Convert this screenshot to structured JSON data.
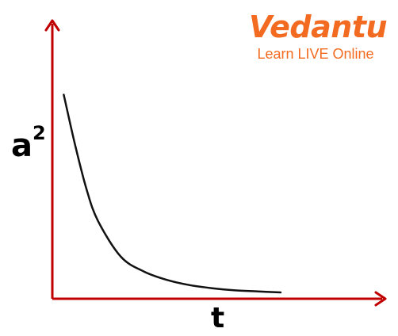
{
  "chart_data": {
    "type": "line",
    "title": "",
    "xlabel": "t",
    "ylabel": "a",
    "ylabel_superscript": "2",
    "x_ticks": [],
    "y_ticks": [],
    "grid": false,
    "legend": "none",
    "series": [
      {
        "x": [
          0.05,
          0.1,
          0.15,
          0.2,
          0.3,
          0.4,
          0.5,
          0.6,
          0.7,
          0.8,
          0.9,
          1.0
        ],
        "y": [
          0.97,
          0.73,
          0.52,
          0.37,
          0.2,
          0.13,
          0.09,
          0.065,
          0.05,
          0.04,
          0.035,
          0.03
        ]
      }
    ],
    "xlim": [
      0,
      1.25
    ],
    "ylim": [
      0,
      1.1
    ],
    "axis_color": "#c00000",
    "line_color": "#111111"
  },
  "logo": {
    "name": "Vedantu",
    "tagline": "Learn LIVE Online",
    "color": "#f26b21"
  }
}
